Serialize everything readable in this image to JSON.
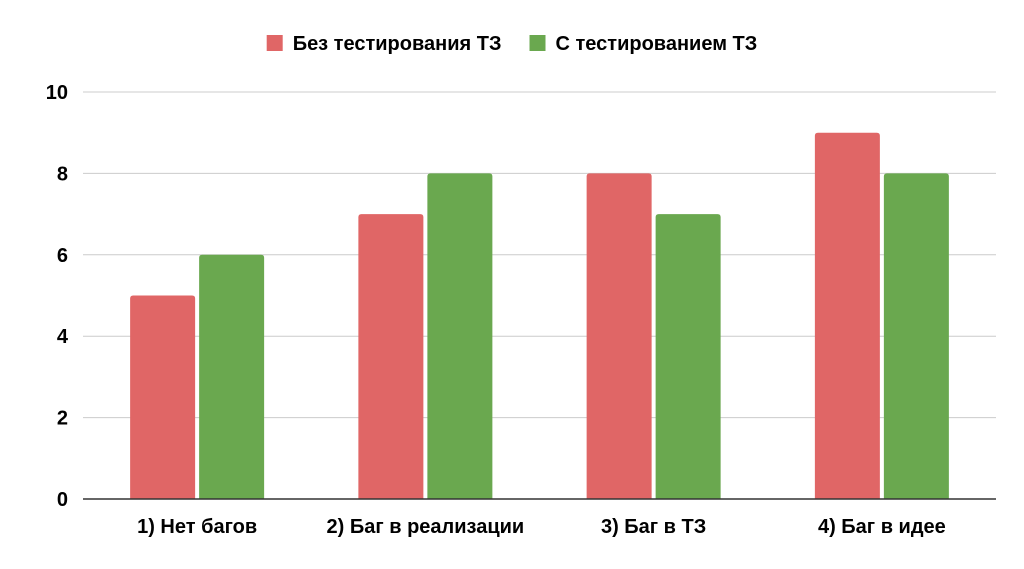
{
  "chart_data": {
    "type": "bar",
    "title": "",
    "xlabel": "",
    "ylabel": "",
    "categories": [
      "1) Нет багов",
      "2) Баг в реализации",
      "3) Баг в ТЗ",
      "4) Баг в идее"
    ],
    "series": [
      {
        "name": "Без тестирования ТЗ",
        "values": [
          5,
          7,
          8,
          9
        ],
        "color": "#e06666"
      },
      {
        "name": "С тестированием ТЗ",
        "values": [
          6,
          8,
          7,
          8
        ],
        "color": "#6aa84f"
      }
    ],
    "ylim": [
      0,
      10
    ],
    "yticks": [
      "0",
      "2",
      "4",
      "6",
      "8",
      "10"
    ],
    "grid": true,
    "legend": "top-center",
    "colors": {
      "grid": "#cccccc",
      "axis": "#333333",
      "text": "#000000"
    }
  }
}
